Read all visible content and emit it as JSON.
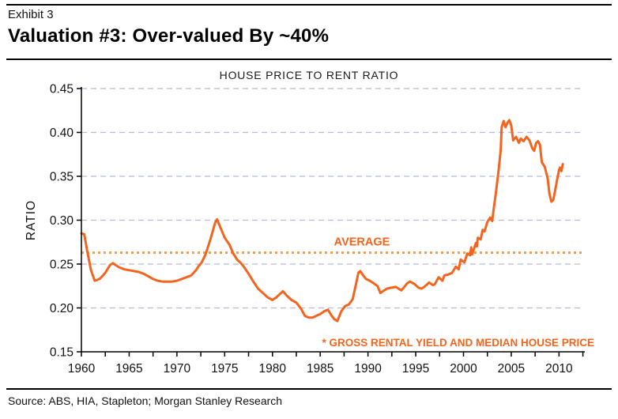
{
  "header": {
    "exhibit_label": "Exhibit 3",
    "title": "Valuation #3: Over-valued By ~40%"
  },
  "footer": {
    "source": "Source: ABS, HIA, Stapleton; Morgan Stanley Research"
  },
  "chart_data": {
    "type": "line",
    "title": "HOUSE PRICE TO RENT RATIO",
    "xlabel": "",
    "ylabel": "RATIO",
    "xlim": [
      1960,
      2012.7
    ],
    "ylim": [
      0.15,
      0.45
    ],
    "x_ticks": [
      1960,
      1965,
      1970,
      1975,
      1980,
      1985,
      1990,
      1995,
      2000,
      2005,
      2010
    ],
    "x_minor_tick_interval": 2.5,
    "y_ticks": [
      0.15,
      0.2,
      0.25,
      0.3,
      0.35,
      0.4,
      0.45
    ],
    "y_tick_decimals": 2,
    "grid": "horizontal-dashed",
    "legend": "none",
    "average_value": 0.263,
    "annotations": {
      "average_label": "AVERAGE",
      "footnote": "* GROSS RENTAL YIELD AND MEDIAN HOUSE PRICE"
    },
    "colors": {
      "line": "#F3641E",
      "average_line": "#E2A14F",
      "grid": "#B3BADF",
      "axis": "#000000",
      "annotation": "#F3641E",
      "tick_text": "#111111"
    },
    "series": [
      {
        "name": "House price to rent ratio",
        "points": [
          [
            1960.0,
            0.285
          ],
          [
            1960.3,
            0.284
          ],
          [
            1960.6,
            0.265
          ],
          [
            1961.0,
            0.243
          ],
          [
            1961.4,
            0.231
          ],
          [
            1961.7,
            0.232
          ],
          [
            1962.0,
            0.234
          ],
          [
            1962.5,
            0.24
          ],
          [
            1963.0,
            0.249
          ],
          [
            1963.3,
            0.251
          ],
          [
            1963.7,
            0.248
          ],
          [
            1964.0,
            0.246
          ],
          [
            1964.5,
            0.244
          ],
          [
            1965.0,
            0.243
          ],
          [
            1965.5,
            0.242
          ],
          [
            1966.0,
            0.241
          ],
          [
            1966.5,
            0.239
          ],
          [
            1967.0,
            0.236
          ],
          [
            1967.5,
            0.233
          ],
          [
            1968.0,
            0.231
          ],
          [
            1968.5,
            0.23
          ],
          [
            1969.0,
            0.23
          ],
          [
            1969.5,
            0.23
          ],
          [
            1970.0,
            0.231
          ],
          [
            1970.5,
            0.233
          ],
          [
            1971.0,
            0.235
          ],
          [
            1971.5,
            0.237
          ],
          [
            1972.0,
            0.243
          ],
          [
            1972.3,
            0.248
          ],
          [
            1972.6,
            0.252
          ],
          [
            1973.0,
            0.261
          ],
          [
            1973.5,
            0.278
          ],
          [
            1974.0,
            0.297
          ],
          [
            1974.2,
            0.301
          ],
          [
            1974.5,
            0.293
          ],
          [
            1975.0,
            0.28
          ],
          [
            1975.5,
            0.272
          ],
          [
            1975.9,
            0.262
          ],
          [
            1976.3,
            0.255
          ],
          [
            1976.7,
            0.251
          ],
          [
            1977.0,
            0.247
          ],
          [
            1977.5,
            0.239
          ],
          [
            1978.0,
            0.23
          ],
          [
            1978.5,
            0.222
          ],
          [
            1979.0,
            0.217
          ],
          [
            1979.5,
            0.212
          ],
          [
            1980.0,
            0.209
          ],
          [
            1980.4,
            0.212
          ],
          [
            1980.8,
            0.216
          ],
          [
            1981.1,
            0.219
          ],
          [
            1981.5,
            0.214
          ],
          [
            1982.0,
            0.209
          ],
          [
            1982.5,
            0.206
          ],
          [
            1983.0,
            0.199
          ],
          [
            1983.4,
            0.191
          ],
          [
            1983.8,
            0.189
          ],
          [
            1984.2,
            0.189
          ],
          [
            1984.6,
            0.191
          ],
          [
            1985.0,
            0.193
          ],
          [
            1985.4,
            0.196
          ],
          [
            1985.8,
            0.198
          ],
          [
            1986.2,
            0.191
          ],
          [
            1986.5,
            0.187
          ],
          [
            1986.8,
            0.185
          ],
          [
            1987.2,
            0.196
          ],
          [
            1987.6,
            0.202
          ],
          [
            1988.0,
            0.204
          ],
          [
            1988.4,
            0.21
          ],
          [
            1988.7,
            0.225
          ],
          [
            1989.0,
            0.24
          ],
          [
            1989.2,
            0.242
          ],
          [
            1989.5,
            0.237
          ],
          [
            1989.8,
            0.233
          ],
          [
            1990.2,
            0.231
          ],
          [
            1990.6,
            0.228
          ],
          [
            1991.0,
            0.225
          ],
          [
            1991.3,
            0.217
          ],
          [
            1991.7,
            0.22
          ],
          [
            1992.0,
            0.222
          ],
          [
            1992.4,
            0.223
          ],
          [
            1992.9,
            0.224
          ],
          [
            1993.2,
            0.222
          ],
          [
            1993.5,
            0.22
          ],
          [
            1993.8,
            0.224
          ],
          [
            1994.1,
            0.228
          ],
          [
            1994.4,
            0.23
          ],
          [
            1994.9,
            0.227
          ],
          [
            1995.3,
            0.223
          ],
          [
            1995.6,
            0.222
          ],
          [
            1995.9,
            0.224
          ],
          [
            1996.4,
            0.229
          ],
          [
            1996.8,
            0.226
          ],
          [
            1997.0,
            0.227
          ],
          [
            1997.4,
            0.235
          ],
          [
            1997.8,
            0.231
          ],
          [
            1998.0,
            0.237
          ],
          [
            1998.4,
            0.238
          ],
          [
            1998.8,
            0.24
          ],
          [
            1999.2,
            0.247
          ],
          [
            1999.5,
            0.244
          ],
          [
            1999.7,
            0.255
          ],
          [
            2000.1,
            0.252
          ],
          [
            2000.4,
            0.262
          ],
          [
            2000.7,
            0.26
          ],
          [
            2000.8,
            0.269
          ],
          [
            2000.9,
            0.261
          ],
          [
            2001.3,
            0.274
          ],
          [
            2001.4,
            0.27
          ],
          [
            2001.5,
            0.28
          ],
          [
            2001.8,
            0.278
          ],
          [
            2002.0,
            0.289
          ],
          [
            2002.2,
            0.287
          ],
          [
            2002.5,
            0.298
          ],
          [
            2002.8,
            0.303
          ],
          [
            2003.0,
            0.299
          ],
          [
            2003.2,
            0.316
          ],
          [
            2003.4,
            0.332
          ],
          [
            2003.7,
            0.359
          ],
          [
            2003.9,
            0.38
          ],
          [
            2004.0,
            0.406
          ],
          [
            2004.2,
            0.413
          ],
          [
            2004.4,
            0.406
          ],
          [
            2004.6,
            0.411
          ],
          [
            2004.8,
            0.414
          ],
          [
            2005.0,
            0.408
          ],
          [
            2005.2,
            0.391
          ],
          [
            2005.5,
            0.395
          ],
          [
            2005.8,
            0.388
          ],
          [
            2006.0,
            0.393
          ],
          [
            2006.3,
            0.39
          ],
          [
            2006.6,
            0.395
          ],
          [
            2006.9,
            0.391
          ],
          [
            2007.2,
            0.382
          ],
          [
            2007.4,
            0.379
          ],
          [
            2007.6,
            0.388
          ],
          [
            2007.8,
            0.39
          ],
          [
            2008.0,
            0.386
          ],
          [
            2008.2,
            0.366
          ],
          [
            2008.5,
            0.361
          ],
          [
            2008.8,
            0.348
          ],
          [
            2009.0,
            0.33
          ],
          [
            2009.2,
            0.321
          ],
          [
            2009.4,
            0.323
          ],
          [
            2009.6,
            0.334
          ],
          [
            2009.8,
            0.346
          ],
          [
            2010.0,
            0.357
          ],
          [
            2010.1,
            0.36
          ],
          [
            2010.25,
            0.356
          ],
          [
            2010.4,
            0.364
          ]
        ]
      }
    ]
  }
}
